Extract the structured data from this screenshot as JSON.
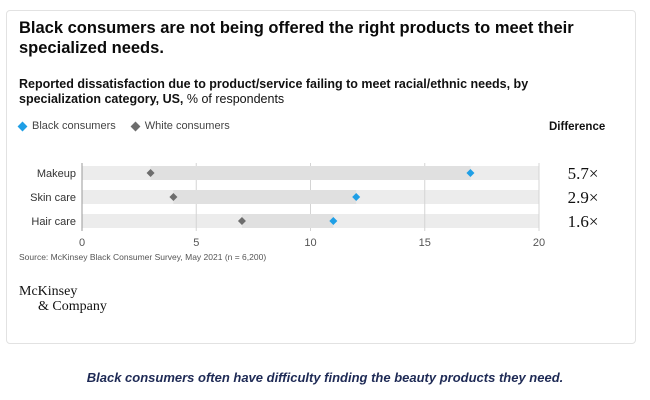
{
  "chart_data": {
    "type": "dot",
    "title": "Black consumers are not being offered the right products to meet their specialized needs.",
    "subtitle_bold": "Reported dissatisfaction due to product/service failing to meet racial/ethnic needs, by specialization category, US,",
    "subtitle_rest": " % of respondents",
    "categories": [
      "Makeup",
      "Skin care",
      "Hair care"
    ],
    "series": [
      {
        "name": "Black consumers",
        "color": "#1f9fe6",
        "values": [
          17,
          12,
          11
        ]
      },
      {
        "name": "White consumers",
        "color": "#6d6d6d",
        "values": [
          3,
          4,
          7
        ]
      }
    ],
    "difference_header": "Difference",
    "differences": [
      "5.7×",
      "2.9×",
      "1.6×"
    ],
    "xlim": [
      0,
      20
    ],
    "xticks": [
      0,
      5,
      10,
      15,
      20
    ],
    "grid": true,
    "source": "Source: McKinsey Black Consumer Survey, May 2021 (n = 6,200)"
  },
  "branding": {
    "logo_line1": "McKinsey",
    "logo_line2": "& Company"
  },
  "caption": "Black consumers often have difficulty finding the beauty products they need."
}
